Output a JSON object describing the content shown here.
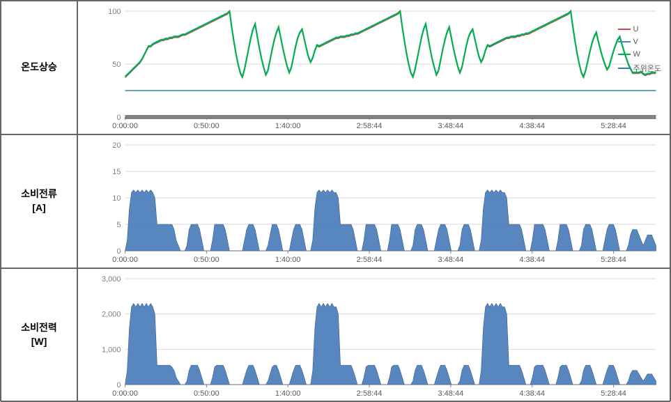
{
  "rows": [
    {
      "label": "온도상승"
    },
    {
      "label": "소비전류\n[A]"
    },
    {
      "label": "소비전력\n[W]"
    }
  ],
  "x_axis": {
    "ticks": [
      "0:00:00",
      "0:50:00",
      "1:40:00",
      "2:58:44",
      "3:48:44",
      "4:38:44",
      "5:28:44"
    ],
    "tick_fontsize": 11,
    "color": "#595959"
  },
  "chart_styling": {
    "grid_color": "#d9d9d9",
    "axis_color": "#808080",
    "background": "#ffffff",
    "area_fill": "#4f81bd",
    "area_stroke": "#3a5f8a",
    "line_colors": {
      "U": "#c0504d",
      "V": "#4f81bd",
      "W": "#00b050",
      "ambient": "#31859c"
    },
    "baseline_bar": "#808080"
  },
  "temperature_chart": {
    "type": "line",
    "ylim": [
      0,
      100
    ],
    "ytick_step": 50,
    "legend": [
      {
        "label": "U",
        "color": "#c0504d"
      },
      {
        "label": "V",
        "color": "#4f81bd"
      },
      {
        "label": "W",
        "color": "#00b050"
      },
      {
        "label": "주위온도",
        "color": "#31859c"
      }
    ],
    "ambient": 25,
    "thermal_series": [
      38,
      40,
      42,
      44,
      46,
      48,
      50,
      52,
      55,
      59,
      63,
      67,
      67,
      69,
      70,
      71,
      72,
      73,
      73,
      74,
      74,
      75,
      75,
      76,
      76,
      76,
      77,
      78,
      78,
      79,
      80,
      81,
      82,
      83,
      84,
      85,
      86,
      87,
      88,
      89,
      90,
      91,
      92,
      93,
      94,
      95,
      96,
      97,
      98,
      100,
      85,
      72,
      60,
      50,
      42,
      38,
      45,
      55,
      65,
      75,
      83,
      88,
      76,
      65,
      55,
      47,
      40,
      44,
      54,
      64,
      73,
      80,
      85,
      75,
      65,
      56,
      48,
      42,
      47,
      57,
      67,
      75,
      80,
      83,
      74,
      65,
      57,
      52,
      56,
      63,
      68,
      67,
      68,
      69,
      70,
      71,
      72,
      73,
      74,
      75,
      75,
      76,
      76,
      76,
      77,
      77,
      78,
      78,
      79,
      79,
      80,
      81,
      82,
      83,
      84,
      85,
      86,
      87,
      88,
      89,
      90,
      91,
      92,
      93,
      94,
      95,
      96,
      97,
      98,
      100,
      85,
      72,
      60,
      50,
      42,
      38,
      45,
      55,
      65,
      75,
      83,
      88,
      76,
      65,
      55,
      47,
      40,
      44,
      54,
      64,
      73,
      80,
      85,
      75,
      65,
      56,
      48,
      42,
      47,
      57,
      67,
      75,
      80,
      83,
      74,
      65,
      57,
      52,
      56,
      63,
      68,
      67,
      68,
      69,
      70,
      71,
      72,
      73,
      74,
      75,
      75,
      76,
      76,
      76,
      77,
      77,
      78,
      78,
      79,
      79,
      80,
      81,
      82,
      83,
      84,
      85,
      86,
      87,
      88,
      89,
      90,
      91,
      92,
      93,
      94,
      95,
      96,
      97,
      98,
      100,
      85,
      72,
      60,
      50,
      42,
      38,
      44,
      53,
      62,
      70,
      76,
      80,
      71,
      63,
      56,
      50,
      45,
      48,
      55,
      62,
      68,
      73,
      76,
      69,
      62,
      56,
      50,
      46,
      42,
      42,
      42,
      42,
      43,
      41,
      40,
      41,
      41,
      42,
      42,
      42
    ]
  },
  "current_chart": {
    "type": "area",
    "ylim": [
      0,
      20
    ],
    "ytick_step": 5,
    "series": [
      0,
      2,
      8,
      11,
      11.5,
      11,
      11.5,
      11,
      11.5,
      11,
      11.5,
      11,
      11.5,
      11,
      10,
      5,
      5,
      5,
      5,
      5,
      5,
      5,
      5,
      4,
      2,
      1,
      0,
      0,
      0,
      1,
      4,
      5,
      5,
      5,
      5,
      4,
      2,
      0,
      0,
      0,
      0,
      2,
      5,
      5,
      5,
      5,
      5,
      4,
      2,
      0,
      0,
      0,
      0,
      0,
      0,
      0,
      2,
      4,
      5,
      5,
      5,
      4,
      2,
      0,
      0,
      0,
      0,
      1,
      3,
      5,
      5,
      5,
      4,
      2,
      0,
      0,
      0,
      0,
      2,
      4,
      5,
      5,
      5,
      4,
      2,
      0,
      0,
      0,
      2,
      8,
      11,
      11.5,
      11,
      11.5,
      11,
      11.5,
      11,
      11.5,
      11,
      11,
      10,
      5,
      5,
      5,
      5,
      5,
      5,
      4,
      2,
      0,
      0,
      0,
      2,
      5,
      5,
      5,
      5,
      5,
      4,
      2,
      0,
      0,
      0,
      0,
      2,
      5,
      5,
      5,
      5,
      4,
      2,
      0,
      0,
      0,
      0,
      1,
      4,
      5,
      5,
      5,
      4,
      2,
      0,
      0,
      0,
      0,
      2,
      4,
      5,
      5,
      5,
      4,
      2,
      0,
      0,
      0,
      0,
      1,
      4,
      5,
      5,
      5,
      4,
      2,
      0,
      0,
      0,
      2,
      8,
      11,
      11.5,
      11,
      11.5,
      11,
      11.5,
      11,
      11.5,
      11,
      11,
      10,
      5,
      5,
      5,
      5,
      5,
      5,
      4,
      2,
      0,
      0,
      0,
      2,
      5,
      5,
      5,
      5,
      5,
      4,
      2,
      0,
      0,
      0,
      0,
      2,
      5,
      5,
      5,
      5,
      4,
      2,
      0,
      0,
      0,
      0,
      1,
      4,
      5,
      5,
      5,
      4,
      2,
      0,
      0,
      0,
      0,
      2,
      4,
      5,
      5,
      5,
      4,
      2,
      0,
      0,
      0,
      0,
      1,
      3,
      4,
      4,
      4,
      3,
      2,
      1,
      2,
      3,
      3,
      3,
      2,
      1
    ]
  },
  "power_chart": {
    "type": "area",
    "ylim": [
      0,
      3000
    ],
    "ytick_step": 1000,
    "series": [
      0,
      400,
      1600,
      2200,
      2300,
      2200,
      2300,
      2200,
      2300,
      2200,
      2300,
      2200,
      2300,
      2200,
      2000,
      550,
      550,
      550,
      550,
      550,
      550,
      550,
      500,
      400,
      200,
      100,
      0,
      0,
      0,
      100,
      400,
      550,
      550,
      550,
      550,
      400,
      200,
      0,
      0,
      0,
      0,
      200,
      500,
      550,
      550,
      550,
      550,
      400,
      200,
      0,
      0,
      0,
      0,
      0,
      0,
      0,
      200,
      400,
      550,
      550,
      550,
      400,
      200,
      0,
      0,
      0,
      0,
      100,
      300,
      500,
      550,
      550,
      400,
      200,
      0,
      0,
      0,
      0,
      200,
      400,
      550,
      550,
      550,
      400,
      200,
      0,
      0,
      0,
      400,
      1600,
      2200,
      2300,
      2200,
      2300,
      2200,
      2300,
      2200,
      2300,
      2200,
      2200,
      2000,
      550,
      550,
      550,
      550,
      550,
      550,
      400,
      200,
      0,
      0,
      0,
      200,
      500,
      550,
      550,
      550,
      550,
      400,
      200,
      0,
      0,
      0,
      0,
      200,
      500,
      550,
      550,
      550,
      400,
      200,
      0,
      0,
      0,
      0,
      100,
      400,
      550,
      550,
      550,
      400,
      200,
      0,
      0,
      0,
      0,
      200,
      400,
      550,
      550,
      550,
      400,
      200,
      0,
      0,
      0,
      0,
      100,
      400,
      550,
      550,
      550,
      400,
      200,
      0,
      0,
      0,
      400,
      1600,
      2200,
      2300,
      2200,
      2300,
      2200,
      2300,
      2200,
      2300,
      2200,
      2200,
      2000,
      550,
      550,
      550,
      550,
      550,
      550,
      400,
      200,
      0,
      0,
      0,
      200,
      500,
      550,
      550,
      550,
      550,
      400,
      200,
      0,
      0,
      0,
      0,
      200,
      500,
      550,
      550,
      550,
      400,
      200,
      0,
      0,
      0,
      0,
      100,
      400,
      550,
      550,
      550,
      400,
      200,
      0,
      0,
      0,
      0,
      200,
      400,
      550,
      550,
      550,
      400,
      200,
      0,
      0,
      0,
      0,
      100,
      300,
      400,
      400,
      400,
      300,
      200,
      100,
      200,
      300,
      300,
      300,
      200,
      100
    ]
  }
}
